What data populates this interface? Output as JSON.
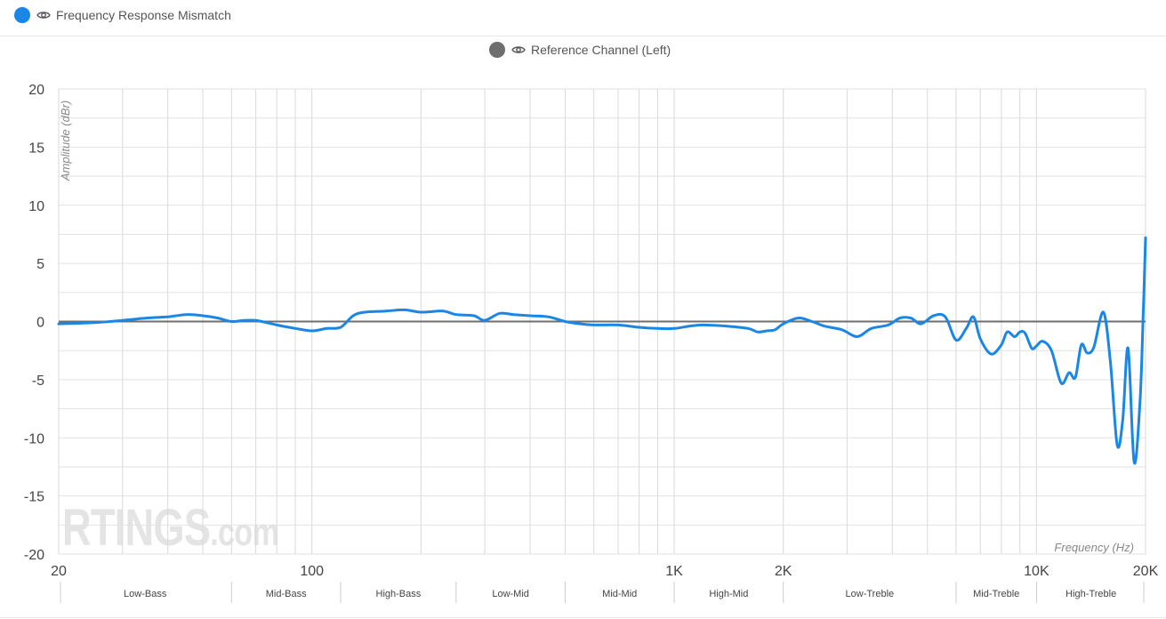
{
  "legend": {
    "series_label": "Frequency Response Mismatch",
    "series_color": "#1a87e6",
    "reference_label": "Reference Channel (Left)",
    "reference_color": "#6e6e6e",
    "eye_icon": "eye-icon"
  },
  "watermark": {
    "brand": "RTINGS",
    "suffix": ".com"
  },
  "chart_data": {
    "type": "line",
    "title": "",
    "xlabel": "Frequency (Hz)",
    "ylabel": "Amplitude (dBr)",
    "xscale": "log",
    "xlim": [
      20,
      20000
    ],
    "ylim": [
      -20,
      20
    ],
    "grid": true,
    "y_ticks": [
      20,
      15,
      10,
      5,
      0,
      -5,
      -10,
      -15,
      -20
    ],
    "x_ticks": [
      {
        "value": 20,
        "label": "20"
      },
      {
        "value": 100,
        "label": "100"
      },
      {
        "value": 1000,
        "label": "1K"
      },
      {
        "value": 2000,
        "label": "2K"
      },
      {
        "value": 10000,
        "label": "10K"
      },
      {
        "value": 20000,
        "label": "20K"
      }
    ],
    "bands": [
      {
        "label": "Low-Bass",
        "from": 20,
        "to": 60
      },
      {
        "label": "Mid-Bass",
        "from": 60,
        "to": 120
      },
      {
        "label": "High-Bass",
        "from": 120,
        "to": 250
      },
      {
        "label": "Low-Mid",
        "from": 250,
        "to": 500
      },
      {
        "label": "Mid-Mid",
        "from": 500,
        "to": 1000
      },
      {
        "label": "High-Mid",
        "from": 1000,
        "to": 2000
      },
      {
        "label": "Low-Treble",
        "from": 2000,
        "to": 6000
      },
      {
        "label": "Mid-Treble",
        "from": 6000,
        "to": 10000
      },
      {
        "label": "High-Treble",
        "from": 10000,
        "to": 20000
      }
    ],
    "reference": {
      "name": "Reference Channel (Left)",
      "value": 0
    },
    "series": [
      {
        "name": "Frequency Response Mismatch",
        "color": "#1a87e6",
        "points": [
          [
            20,
            -0.2
          ],
          [
            25,
            -0.1
          ],
          [
            30,
            0.1
          ],
          [
            35,
            0.3
          ],
          [
            40,
            0.4
          ],
          [
            45,
            0.6
          ],
          [
            50,
            0.5
          ],
          [
            55,
            0.3
          ],
          [
            60,
            0.0
          ],
          [
            65,
            0.1
          ],
          [
            70,
            0.1
          ],
          [
            75,
            -0.1
          ],
          [
            80,
            -0.3
          ],
          [
            90,
            -0.6
          ],
          [
            100,
            -0.8
          ],
          [
            110,
            -0.6
          ],
          [
            120,
            -0.5
          ],
          [
            130,
            0.5
          ],
          [
            140,
            0.8
          ],
          [
            160,
            0.9
          ],
          [
            180,
            1.0
          ],
          [
            200,
            0.8
          ],
          [
            230,
            0.9
          ],
          [
            250,
            0.6
          ],
          [
            280,
            0.5
          ],
          [
            300,
            0.1
          ],
          [
            330,
            0.7
          ],
          [
            360,
            0.6
          ],
          [
            400,
            0.5
          ],
          [
            450,
            0.4
          ],
          [
            500,
            0.0
          ],
          [
            550,
            -0.2
          ],
          [
            600,
            -0.3
          ],
          [
            700,
            -0.3
          ],
          [
            800,
            -0.5
          ],
          [
            900,
            -0.6
          ],
          [
            1000,
            -0.6
          ],
          [
            1100,
            -0.4
          ],
          [
            1200,
            -0.3
          ],
          [
            1400,
            -0.4
          ],
          [
            1600,
            -0.6
          ],
          [
            1700,
            -0.9
          ],
          [
            1800,
            -0.8
          ],
          [
            1900,
            -0.7
          ],
          [
            2000,
            -0.2
          ],
          [
            2200,
            0.3
          ],
          [
            2400,
            0.0
          ],
          [
            2600,
            -0.4
          ],
          [
            2900,
            -0.7
          ],
          [
            3200,
            -1.3
          ],
          [
            3500,
            -0.6
          ],
          [
            3900,
            -0.3
          ],
          [
            4200,
            0.3
          ],
          [
            4500,
            0.3
          ],
          [
            4800,
            -0.2
          ],
          [
            5200,
            0.5
          ],
          [
            5600,
            0.4
          ],
          [
            6000,
            -1.6
          ],
          [
            6400,
            -0.6
          ],
          [
            6700,
            0.4
          ],
          [
            7000,
            -1.5
          ],
          [
            7500,
            -2.8
          ],
          [
            8000,
            -2.0
          ],
          [
            8300,
            -0.9
          ],
          [
            8700,
            -1.3
          ],
          [
            9000,
            -0.9
          ],
          [
            9300,
            -1.0
          ],
          [
            9700,
            -2.3
          ],
          [
            10000,
            -2.1
          ],
          [
            10400,
            -1.7
          ],
          [
            11000,
            -2.5
          ],
          [
            11700,
            -5.3
          ],
          [
            12300,
            -4.4
          ],
          [
            12800,
            -4.8
          ],
          [
            13300,
            -2.0
          ],
          [
            13800,
            -2.7
          ],
          [
            14400,
            -2.2
          ],
          [
            15300,
            0.8
          ],
          [
            16000,
            -3.5
          ],
          [
            16700,
            -10.6
          ],
          [
            17300,
            -8.5
          ],
          [
            17900,
            -2.3
          ],
          [
            18600,
            -12.1
          ],
          [
            19300,
            -7.0
          ],
          [
            19700,
            0.5
          ],
          [
            20000,
            7.2
          ]
        ]
      }
    ]
  }
}
